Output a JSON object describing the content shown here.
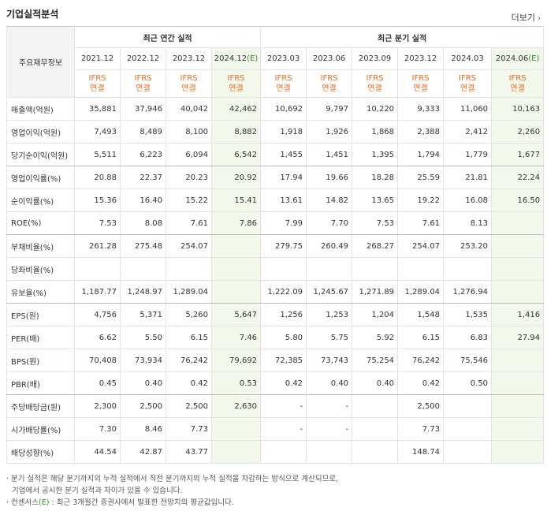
{
  "title": "기업실적분석",
  "more_label": "더보기",
  "corner_label": "주요재무정보",
  "annual_header": "최근 연간 실적",
  "quarter_header": "최근 분기 실적",
  "annual_years": [
    "2021.12",
    "2022.12",
    "2023.12",
    "2024.12"
  ],
  "annual_est_suffix": "(E)",
  "quarter_periods": [
    "2023.03",
    "2023.06",
    "2023.09",
    "2023.12",
    "2024.03",
    "2024.06"
  ],
  "quarter_est_suffix": "(E)",
  "ifrs_line1": "IFRS",
  "ifrs_line2": "연결",
  "rows": [
    {
      "label": "매출액(억원)",
      "values": [
        "35,881",
        "37,946",
        "40,042",
        "42,462",
        "10,692",
        "9,797",
        "10,220",
        "9,333",
        "11,060",
        "10,163"
      ]
    },
    {
      "label": "영업이익(억원)",
      "values": [
        "7,493",
        "8,489",
        "8,100",
        "8,882",
        "1,918",
        "1,926",
        "1,868",
        "2,388",
        "2,412",
        "2,260"
      ]
    },
    {
      "label": "당기순이익(억원)",
      "values": [
        "5,511",
        "6,223",
        "6,094",
        "6,542",
        "1,455",
        "1,451",
        "1,395",
        "1,794",
        "1,779",
        "1,677"
      ]
    },
    {
      "label": "영업이익률(%)",
      "values": [
        "20.88",
        "22.37",
        "20.23",
        "20.92",
        "17.94",
        "19.66",
        "18.28",
        "25.59",
        "21.81",
        "22.24"
      ]
    },
    {
      "label": "순이익률(%)",
      "values": [
        "15.36",
        "16.40",
        "15.22",
        "15.41",
        "13.61",
        "14.82",
        "13.65",
        "19.22",
        "16.08",
        "16.50"
      ]
    },
    {
      "label": "ROE(%)",
      "values": [
        "7.53",
        "8.08",
        "7.61",
        "7.86",
        "7.99",
        "7.70",
        "7.53",
        "7.61",
        "8.13",
        ""
      ]
    },
    {
      "label": "부채비율(%)",
      "values": [
        "261.28",
        "275.48",
        "254.07",
        "",
        "279.75",
        "260.49",
        "268.27",
        "254.07",
        "253.20",
        ""
      ]
    },
    {
      "label": "당좌비율(%)",
      "values": [
        "",
        "",
        "",
        "",
        "",
        "",
        "",
        "",
        "",
        ""
      ]
    },
    {
      "label": "유보율(%)",
      "values": [
        "1,187.77",
        "1,248.97",
        "1,289.04",
        "",
        "1,222.09",
        "1,245.67",
        "1,271.89",
        "1,289.04",
        "1,276.94",
        ""
      ]
    },
    {
      "label": "EPS(원)",
      "values": [
        "4,756",
        "5,371",
        "5,260",
        "5,647",
        "1,256",
        "1,253",
        "1,204",
        "1,548",
        "1,535",
        "1,416"
      ]
    },
    {
      "label": "PER(배)",
      "values": [
        "6.62",
        "5.50",
        "6.15",
        "7.46",
        "5.80",
        "5.75",
        "5.92",
        "6.15",
        "6.83",
        "27.94"
      ]
    },
    {
      "label": "BPS(원)",
      "values": [
        "70,408",
        "73,934",
        "76,242",
        "79,692",
        "72,385",
        "73,743",
        "75,254",
        "76,242",
        "75,546",
        ""
      ]
    },
    {
      "label": "PBR(배)",
      "values": [
        "0.45",
        "0.40",
        "0.42",
        "0.53",
        "0.42",
        "0.40",
        "0.40",
        "0.42",
        "0.50",
        ""
      ]
    },
    {
      "label": "주당배당금(원)",
      "values": [
        "2,300",
        "2,500",
        "2,500",
        "2,630",
        "-",
        "-",
        "",
        "2,500",
        "",
        ""
      ]
    },
    {
      "label": "시가배당률(%)",
      "values": [
        "7.30",
        "8.46",
        "7.73",
        "",
        "-",
        "-",
        "",
        "7.73",
        "",
        ""
      ]
    },
    {
      "label": "배당성향(%)",
      "values": [
        "44.54",
        "42.87",
        "43.77",
        "",
        "",
        "",
        "",
        "148.74",
        "",
        ""
      ]
    }
  ],
  "notes": [
    "분기 실적은 해당 분기까지의 누적 실적에서 직전 분기까지의 누적 실적을 차감하는 방식으로 계산되므로,",
    "기업에서 공시한 분기 실적과 차이가 있을 수 있습니다.",
    "컨센서스",
    "(E)",
    ": 최근 3개월간 증권사에서 발표한 전망치의 평균값입니다."
  ]
}
